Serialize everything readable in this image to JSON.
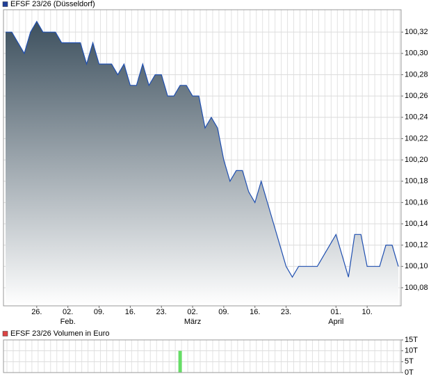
{
  "chart_data": [
    {
      "type": "area",
      "title": "EFSF 23/26 (Düsseldorf)",
      "color": "#1f4fb0",
      "legend_color": "#1f3f99",
      "fill_top": "#3d505e",
      "fill_bottom": "#ffffff",
      "categories": [
        null,
        null,
        null,
        null,
        null,
        "26.",
        null,
        null,
        null,
        null,
        "02.",
        null,
        null,
        null,
        null,
        "09.",
        null,
        null,
        null,
        null,
        "16.",
        null,
        null,
        null,
        null,
        "23.",
        null,
        null,
        null,
        null,
        "02.",
        null,
        null,
        null,
        null,
        "09.",
        null,
        null,
        null,
        null,
        "16.",
        null,
        null,
        null,
        null,
        "23.",
        null,
        null,
        null,
        null,
        null,
        null,
        null,
        "01.",
        null,
        null,
        null,
        null,
        "10.",
        null,
        null,
        null,
        null,
        null
      ],
      "category_sublabels": [
        null,
        null,
        null,
        null,
        null,
        null,
        null,
        null,
        null,
        null,
        "Feb.",
        null,
        null,
        null,
        null,
        null,
        null,
        null,
        null,
        null,
        null,
        null,
        null,
        null,
        null,
        null,
        null,
        null,
        null,
        null,
        "März",
        null,
        null,
        null,
        null,
        null,
        null,
        null,
        null,
        null,
        null,
        null,
        null,
        null,
        null,
        null,
        null,
        null,
        null,
        null,
        null,
        null,
        null,
        "April",
        null,
        null,
        null,
        null,
        null,
        null,
        null,
        null,
        null,
        null
      ],
      "values": [
        100.32,
        100.32,
        100.31,
        100.3,
        100.32,
        100.33,
        100.32,
        100.32,
        100.32,
        100.31,
        100.31,
        100.31,
        100.31,
        100.29,
        100.31,
        100.29,
        100.29,
        100.29,
        100.28,
        100.29,
        100.27,
        100.27,
        100.29,
        100.27,
        100.28,
        100.28,
        100.26,
        100.26,
        100.27,
        100.27,
        100.26,
        100.26,
        100.23,
        100.24,
        100.23,
        100.2,
        100.18,
        100.19,
        100.19,
        100.17,
        100.16,
        100.18,
        100.16,
        100.14,
        100.12,
        100.1,
        100.09,
        100.1,
        100.1,
        100.1,
        100.1,
        100.11,
        100.12,
        100.13,
        100.11,
        100.09,
        100.13,
        100.13,
        100.1,
        100.1,
        100.1,
        100.12,
        100.12,
        100.1
      ],
      "ylim": [
        100.063,
        100.341
      ],
      "yticks": [
        {
          "value": 100.08,
          "label": "100,08"
        },
        {
          "value": 100.1,
          "label": "100,10"
        },
        {
          "value": 100.12,
          "label": "100,12"
        },
        {
          "value": 100.14,
          "label": "100,14"
        },
        {
          "value": 100.16,
          "label": "100,16"
        },
        {
          "value": 100.18,
          "label": "100,18"
        },
        {
          "value": 100.2,
          "label": "100,20"
        },
        {
          "value": 100.22,
          "label": "100,22"
        },
        {
          "value": 100.24,
          "label": "100,24"
        },
        {
          "value": 100.26,
          "label": "100,26"
        },
        {
          "value": 100.28,
          "label": "100,28"
        },
        {
          "value": 100.3,
          "label": "100,30"
        },
        {
          "value": 100.32,
          "label": "100,32"
        }
      ],
      "grid": true
    },
    {
      "type": "bar",
      "title": "EFSF 23/26 Volumen in Euro",
      "color": "#66dd66",
      "legend_color": "#dd4444",
      "values": [
        0,
        0,
        0,
        0,
        0,
        0,
        0,
        0,
        0,
        0,
        0,
        0,
        0,
        0,
        0,
        0,
        0,
        0,
        0,
        0,
        0,
        0,
        0,
        0,
        0,
        0,
        0,
        0,
        10000,
        0,
        0,
        0,
        0,
        0,
        0,
        0,
        0,
        0,
        0,
        0,
        0,
        0,
        0,
        0,
        0,
        0,
        0,
        0,
        0,
        0,
        0,
        0,
        0,
        0,
        0,
        0,
        0,
        0,
        0,
        0,
        0,
        0,
        0,
        0
      ],
      "ylim": [
        0,
        15000
      ],
      "yticks": [
        {
          "value": 0,
          "label": "0T"
        },
        {
          "value": 5000,
          "label": "5T"
        },
        {
          "value": 10000,
          "label": "10T"
        },
        {
          "value": 15000,
          "label": "15T"
        }
      ],
      "grid": true
    }
  ]
}
